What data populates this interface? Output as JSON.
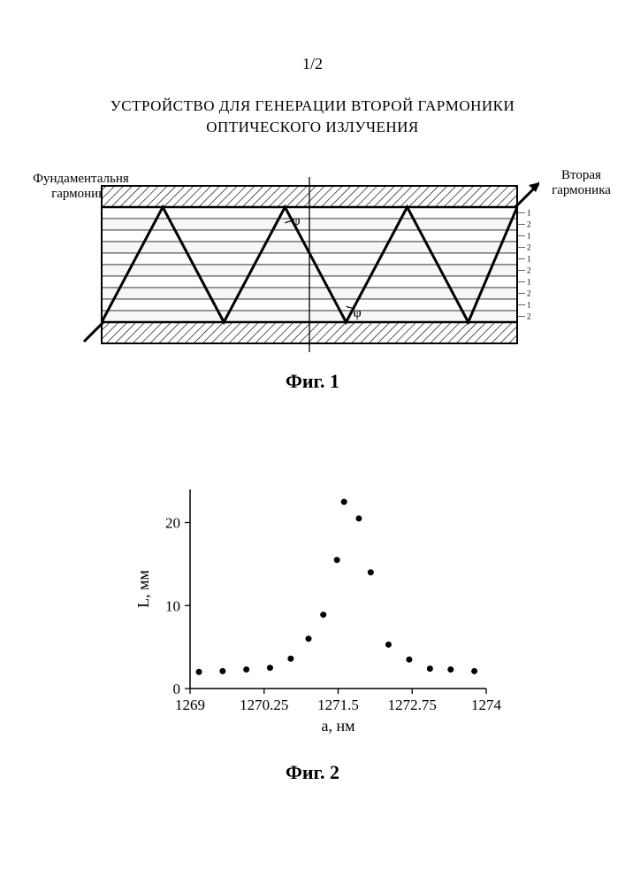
{
  "page_number": "1/2",
  "title_line1": "УСТРОЙСТВО ДЛЯ ГЕНЕРАЦИИ ВТОРОЙ ГАРМОНИКИ",
  "title_line2": "ОПТИЧЕСКОГО ИЗЛУЧЕНИЯ",
  "fig1": {
    "caption": "Фиг. 1",
    "label_fundamental_line1": "Фундаментальня",
    "label_fundamental_line2": "гармоника",
    "label_second_line1": "Вторая",
    "label_second_line2": "гармоника",
    "angle_symbol": "φ",
    "layer_labels": [
      "1",
      "2",
      "1",
      "2",
      "1",
      "2",
      "1",
      "2",
      "1",
      "2"
    ],
    "colors": {
      "stroke": "#000000",
      "hatch": "#000000",
      "layer_fill": "#f5f5f5",
      "bg": "#ffffff"
    }
  },
  "fig2": {
    "caption": "Фиг. 2",
    "type": "scatter",
    "xlabel": "a,  нм",
    "ylabel": "L, мм",
    "xlim": [
      1269,
      1274
    ],
    "ylim": [
      0,
      24
    ],
    "xticks": [
      1269,
      1270.25,
      1271.5,
      1272.75,
      1274
    ],
    "xtick_labels": [
      "1269",
      "1270.25",
      "1271.5",
      "1272.75",
      "1274"
    ],
    "yticks": [
      0,
      10,
      20
    ],
    "ytick_labels": [
      "0",
      "10",
      "20"
    ],
    "points": [
      {
        "x": 1269.15,
        "y": 2.0
      },
      {
        "x": 1269.55,
        "y": 2.1
      },
      {
        "x": 1269.95,
        "y": 2.3
      },
      {
        "x": 1270.35,
        "y": 2.5
      },
      {
        "x": 1270.7,
        "y": 3.6
      },
      {
        "x": 1271.0,
        "y": 6.0
      },
      {
        "x": 1271.25,
        "y": 8.9
      },
      {
        "x": 1271.48,
        "y": 15.5
      },
      {
        "x": 1271.6,
        "y": 22.5
      },
      {
        "x": 1271.85,
        "y": 20.5
      },
      {
        "x": 1272.05,
        "y": 14.0
      },
      {
        "x": 1272.35,
        "y": 5.3
      },
      {
        "x": 1272.7,
        "y": 3.5
      },
      {
        "x": 1273.05,
        "y": 2.4
      },
      {
        "x": 1273.4,
        "y": 2.3
      },
      {
        "x": 1273.8,
        "y": 2.1
      }
    ],
    "marker": {
      "shape": "circle",
      "radius": 3.5,
      "fill": "#000000"
    },
    "colors": {
      "axis": "#000000",
      "bg": "#ffffff",
      "text": "#000000"
    },
    "axis_linewidth": 1.5,
    "tick_len": 6,
    "label_fontsize": 18,
    "tick_fontsize": 17
  }
}
